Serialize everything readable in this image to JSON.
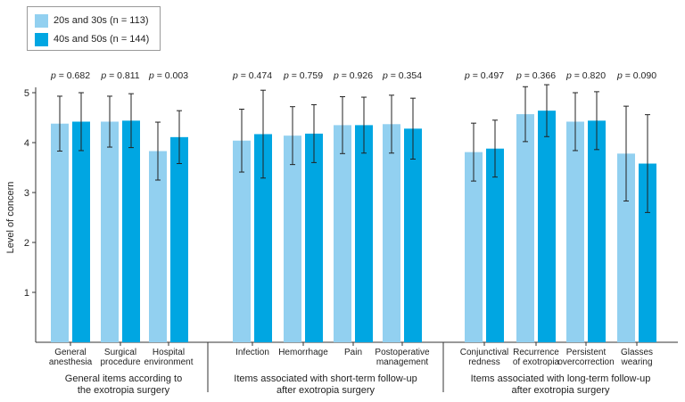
{
  "chart_data": {
    "type": "bar",
    "ylabel": "Level of concern",
    "ylim": [
      0,
      5
    ],
    "yticks": [
      1,
      2,
      3,
      4,
      5
    ],
    "grid": false,
    "legend_position": "top-left",
    "series": [
      {
        "name": "20s and 30s (n = 113)",
        "color": "#92d0f0",
        "values": [
          4.38,
          4.42,
          3.83,
          4.04,
          4.14,
          4.35,
          4.37,
          3.81,
          4.57,
          4.42,
          3.78
        ],
        "errors": [
          0.55,
          0.51,
          0.58,
          0.63,
          0.58,
          0.57,
          0.58,
          0.58,
          0.55,
          0.58,
          0.95
        ]
      },
      {
        "name": "40s and 50s (n = 144)",
        "color": "#00a6e2",
        "values": [
          4.42,
          4.44,
          4.11,
          4.17,
          4.18,
          4.35,
          4.28,
          3.88,
          4.64,
          4.44,
          3.58
        ],
        "errors": [
          0.58,
          0.54,
          0.53,
          0.88,
          0.58,
          0.56,
          0.61,
          0.57,
          0.52,
          0.58,
          0.98
        ]
      }
    ],
    "groups": [
      {
        "title": [
          "General items according to",
          "the exotropia surgery"
        ],
        "categories": [
          {
            "label": [
              "General",
              "anesthesia"
            ],
            "p": "0.682"
          },
          {
            "label": [
              "Surgical",
              "procedure"
            ],
            "p": "0.811"
          },
          {
            "label": [
              "Hospital",
              "environment"
            ],
            "p": "0.003"
          }
        ]
      },
      {
        "title": [
          "Items associated with short-term follow-up",
          "after exotropia surgery"
        ],
        "categories": [
          {
            "label": [
              "Infection"
            ],
            "p": "0.474"
          },
          {
            "label": [
              "Hemorrhage"
            ],
            "p": "0.759"
          },
          {
            "label": [
              "Pain"
            ],
            "p": "0.926"
          },
          {
            "label": [
              "Postoperative",
              "management"
            ],
            "p": "0.354"
          }
        ]
      },
      {
        "title": [
          "Items associated with long-term follow-up",
          "after exotropia surgery"
        ],
        "categories": [
          {
            "label": [
              "Conjunctival",
              "redness"
            ],
            "p": "0.497"
          },
          {
            "label": [
              "Recurrence",
              "of exotropia"
            ],
            "p": "0.366"
          },
          {
            "label": [
              "Persistent",
              "overcorrection"
            ],
            "p": "0.820"
          },
          {
            "label": [
              "Glasses",
              "wearing"
            ],
            "p": "0.090"
          }
        ]
      }
    ]
  },
  "legend": {
    "items": [
      {
        "label": "20s and 30s (n = 113)",
        "color": "#92d0f0"
      },
      {
        "label": "40s and 50s (n = 144)",
        "color": "#00a6e2"
      }
    ]
  }
}
